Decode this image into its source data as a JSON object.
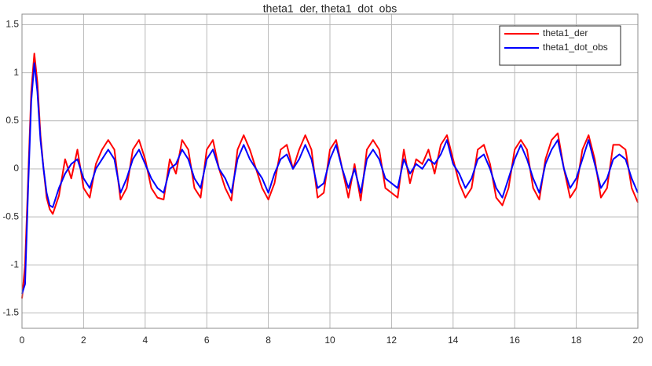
{
  "chart_data": {
    "type": "line",
    "title": "theta1_der, theta1_dot_obs",
    "x": [
      0,
      0.1,
      0.2,
      0.3,
      0.4,
      0.5,
      0.6,
      0.7,
      0.8,
      0.9,
      1.0,
      1.2,
      1.4,
      1.6,
      1.8,
      2.0,
      2.2,
      2.4,
      2.6,
      2.8,
      3.0,
      3.2,
      3.4,
      3.6,
      3.8,
      4.0,
      4.2,
      4.4,
      4.6,
      4.8,
      5.0,
      5.2,
      5.4,
      5.6,
      5.8,
      6.0,
      6.2,
      6.4,
      6.6,
      6.8,
      7.0,
      7.2,
      7.4,
      7.6,
      7.8,
      8.0,
      8.2,
      8.4,
      8.6,
      8.8,
      9.0,
      9.2,
      9.4,
      9.6,
      9.8,
      10.0,
      10.2,
      10.4,
      10.6,
      10.8,
      11.0,
      11.2,
      11.4,
      11.6,
      11.8,
      12.0,
      12.2,
      12.4,
      12.6,
      12.8,
      13.0,
      13.2,
      13.4,
      13.6,
      13.8,
      14.0,
      14.2,
      14.4,
      14.6,
      14.8,
      15.0,
      15.2,
      15.4,
      15.6,
      15.8,
      16.0,
      16.2,
      16.4,
      16.6,
      16.8,
      17.0,
      17.2,
      17.4,
      17.6,
      17.8,
      18.0,
      18.2,
      18.4,
      18.6,
      18.8,
      19.0,
      19.2,
      19.4,
      19.6,
      19.8,
      20.0
    ],
    "series": [
      {
        "name": "theta1_der",
        "color": "#ff0000",
        "values": [
          -1.35,
          -1.0,
          -0.1,
          0.8,
          1.2,
          0.9,
          0.35,
          0.0,
          -0.3,
          -0.42,
          -0.47,
          -0.28,
          0.1,
          -0.1,
          0.2,
          -0.2,
          -0.3,
          0.05,
          0.2,
          0.3,
          0.2,
          -0.32,
          -0.2,
          0.2,
          0.3,
          0.1,
          -0.2,
          -0.3,
          -0.32,
          0.1,
          -0.05,
          0.3,
          0.2,
          -0.2,
          -0.3,
          0.2,
          0.3,
          0,
          -0.2,
          -0.33,
          0.2,
          0.35,
          0.2,
          0,
          -0.2,
          -0.32,
          -0.15,
          0.2,
          0.25,
          0.0,
          0.2,
          0.35,
          0.2,
          -0.3,
          -0.25,
          0.2,
          0.3,
          0.0,
          -0.3,
          0.05,
          -0.33,
          0.2,
          0.3,
          0.2,
          -0.2,
          -0.25,
          -0.3,
          0.2,
          -0.15,
          0.1,
          0.05,
          0.2,
          -0.05,
          0.25,
          0.35,
          0.1,
          -0.15,
          -0.3,
          -0.2,
          0.2,
          0.25,
          0.05,
          -0.3,
          -0.38,
          -0.2,
          0.2,
          0.3,
          0.2,
          -0.2,
          -0.32,
          0.1,
          0.3,
          0.37,
          0.0,
          -0.3,
          -0.2,
          0.2,
          0.35,
          0.1,
          -0.3,
          -0.2,
          0.25,
          0.25,
          0.2,
          -0.2,
          -0.35
        ]
      },
      {
        "name": "theta1_dot_obs",
        "color": "#0000ff",
        "values": [
          -1.3,
          -1.2,
          -0.2,
          0.7,
          1.1,
          0.8,
          0.3,
          0.0,
          -0.25,
          -0.38,
          -0.4,
          -0.2,
          -0.05,
          0.05,
          0.1,
          -0.1,
          -0.2,
          0.0,
          0.1,
          0.2,
          0.1,
          -0.25,
          -0.1,
          0.1,
          0.2,
          0.05,
          -0.1,
          -0.2,
          -0.25,
          0,
          0.05,
          0.2,
          0.1,
          -0.1,
          -0.2,
          0.1,
          0.2,
          0,
          -0.1,
          -0.25,
          0.1,
          0.25,
          0.1,
          0,
          -0.1,
          -0.25,
          -0.05,
          0.1,
          0.15,
          0.0,
          0.1,
          0.25,
          0.1,
          -0.2,
          -0.15,
          0.1,
          0.25,
          0.0,
          -0.2,
          0,
          -0.25,
          0.1,
          0.2,
          0.1,
          -0.1,
          -0.15,
          -0.2,
          0.1,
          -0.05,
          0.05,
          0,
          0.1,
          0.05,
          0.15,
          0.3,
          0.05,
          -0.05,
          -0.2,
          -0.1,
          0.1,
          0.15,
          0.0,
          -0.2,
          -0.3,
          -0.1,
          0.1,
          0.25,
          0.1,
          -0.1,
          -0.25,
          0.05,
          0.2,
          0.3,
          0.0,
          -0.2,
          -0.1,
          0.1,
          0.3,
          0.05,
          -0.2,
          -0.1,
          0.1,
          0.15,
          0.1,
          -0.1,
          -0.25
        ]
      }
    ],
    "xlim": [
      0,
      20
    ],
    "ylim": [
      -1.66,
      1.61
    ],
    "xticks": [
      0,
      2,
      4,
      6,
      8,
      10,
      12,
      14,
      16,
      18,
      20
    ],
    "yticks": [
      -1.5,
      -1,
      -0.5,
      0,
      0.5,
      1,
      1.5
    ],
    "grid": true,
    "legend": "top-right"
  }
}
